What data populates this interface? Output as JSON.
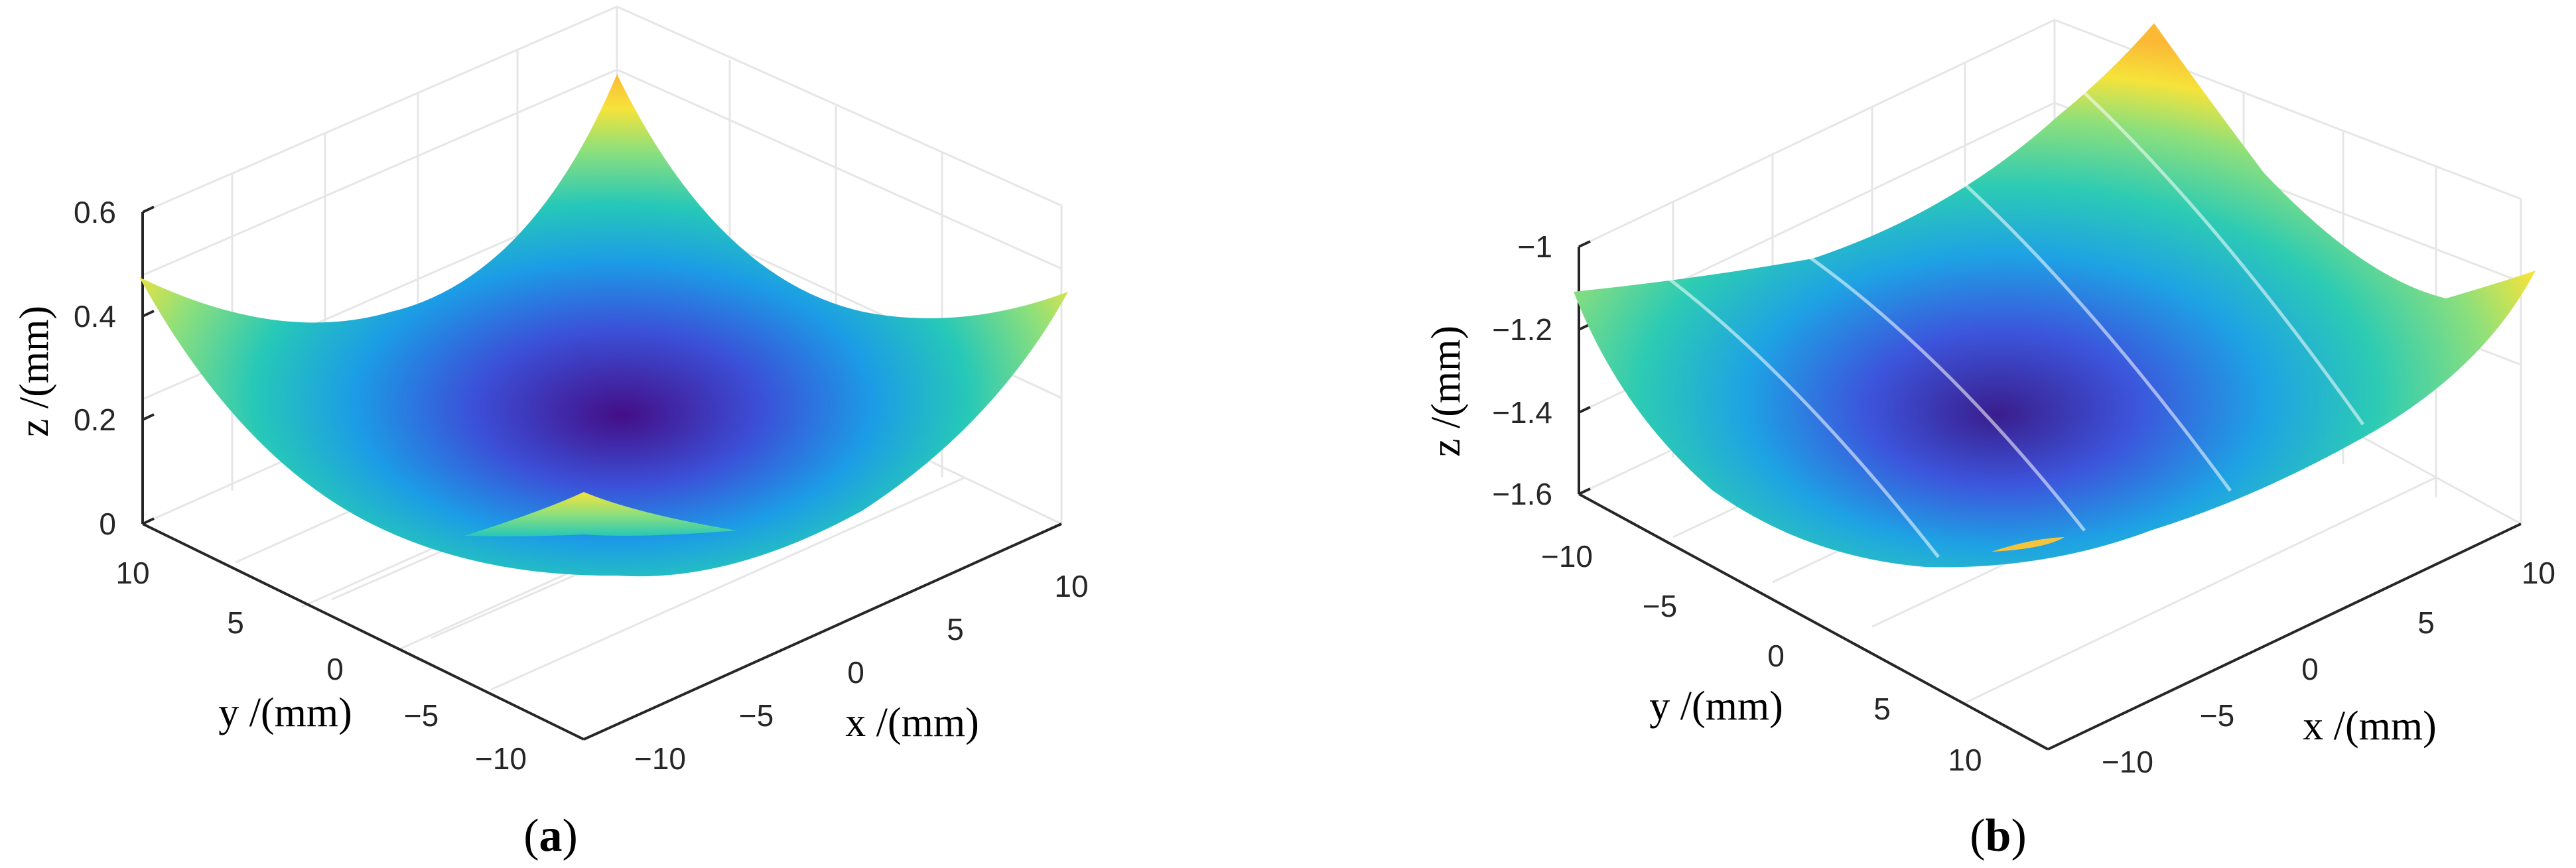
{
  "chart_data": [
    {
      "type": "surface",
      "panel_caption": "a",
      "zlabel": "z /(mm)",
      "xlabel": "x /(mm)",
      "ylabel": "y /(mm)",
      "z_ticks": [
        "0",
        "0.2",
        "0.4",
        "0.6"
      ],
      "x_ticks": [
        "−10",
        "−5",
        "0",
        "5",
        "10"
      ],
      "y_ticks": [
        "10",
        "5",
        "0",
        "−5",
        "−10"
      ],
      "xlim": [
        -12,
        12
      ],
      "ylim": [
        -12,
        12
      ],
      "zlim": [
        0,
        0.6
      ],
      "colormap": [
        "#440e87",
        "#3b50d8",
        "#1c9ce6",
        "#26c8b8",
        "#8fe07a",
        "#f6e33a",
        "#fbb935"
      ]
    },
    {
      "type": "surface",
      "panel_caption": "b",
      "zlabel": "z /(mm)",
      "xlabel": "x /(mm)",
      "ylabel": "y /(mm)",
      "z_ticks": [
        "−1",
        "−1.2",
        "−1.4",
        "−1.6"
      ],
      "x_ticks": [
        "−10",
        "−5",
        "0",
        "5",
        "10"
      ],
      "y_ticks": [
        "−10",
        "−5",
        "0",
        "5",
        "10"
      ],
      "xlim": [
        -12,
        12
      ],
      "ylim": [
        -12,
        12
      ],
      "zlim": [
        -1.6,
        -1.0
      ],
      "colormap": [
        "#3a1d8c",
        "#3c55dc",
        "#1ea2e4",
        "#2ccbb4",
        "#8fe07a",
        "#f6e33a",
        "#fbb935"
      ]
    }
  ],
  "captions": {
    "a_open": "(",
    "a_letter": "a",
    "a_close": ")",
    "b_open": "(",
    "b_letter": "b",
    "b_close": ")"
  }
}
